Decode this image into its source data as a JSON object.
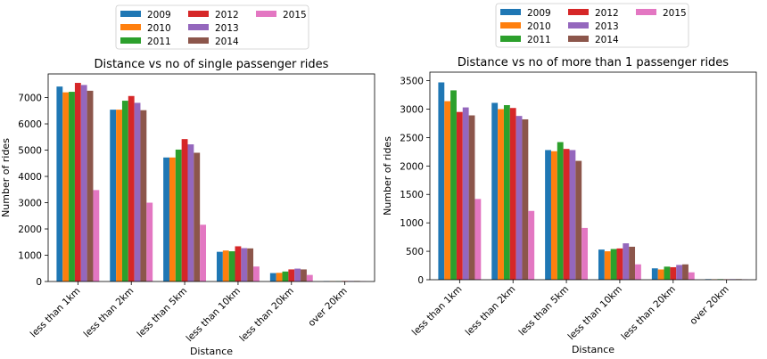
{
  "series_colors": [
    "#1f77b4",
    "#ff7f0e",
    "#2ca02c",
    "#d62728",
    "#9467bd",
    "#8c564b",
    "#e377c2"
  ],
  "chart_data": [
    {
      "type": "bar",
      "title": "Distance vs no of single passenger rides",
      "xlabel": "Distance",
      "ylabel": "Number of rides",
      "ylim": [
        0,
        7900
      ],
      "yticks": [
        0,
        1000,
        2000,
        3000,
        4000,
        5000,
        6000,
        7000
      ],
      "legend_position": "top (above plot)",
      "categories": [
        "less than 1km",
        "less than 2km",
        "less than 5km",
        "less than 10km",
        "less than 20km",
        "over 20km"
      ],
      "series": [
        {
          "name": "2009",
          "values": [
            7420,
            6540,
            4720,
            1130,
            320,
            15
          ]
        },
        {
          "name": "2010",
          "values": [
            7200,
            6540,
            4720,
            1180,
            330,
            15
          ]
        },
        {
          "name": "2011",
          "values": [
            7220,
            6880,
            5020,
            1150,
            380,
            15
          ]
        },
        {
          "name": "2012",
          "values": [
            7560,
            7060,
            5420,
            1340,
            460,
            20
          ]
        },
        {
          "name": "2013",
          "values": [
            7480,
            6800,
            5220,
            1270,
            490,
            20
          ]
        },
        {
          "name": "2014",
          "values": [
            7260,
            6520,
            4900,
            1260,
            460,
            20
          ]
        },
        {
          "name": "2015",
          "values": [
            3480,
            3000,
            2160,
            570,
            250,
            10
          ]
        }
      ]
    },
    {
      "type": "bar",
      "title": "Distance vs no of more than 1 passenger rides",
      "xlabel": "Distance",
      "ylabel": "Number of rides",
      "ylim": [
        0,
        3650
      ],
      "yticks": [
        0,
        500,
        1000,
        1500,
        2000,
        2500,
        3000,
        3500
      ],
      "legend_position": "top (above plot)",
      "categories": [
        "less than 1km",
        "less than 2km",
        "less than 5km",
        "less than 10km",
        "less than 20km",
        "over 20km"
      ],
      "series": [
        {
          "name": "2009",
          "values": [
            3470,
            3110,
            2280,
            530,
            200,
            10
          ]
        },
        {
          "name": "2010",
          "values": [
            3140,
            3000,
            2260,
            500,
            180,
            8
          ]
        },
        {
          "name": "2011",
          "values": [
            3330,
            3070,
            2420,
            540,
            230,
            10
          ]
        },
        {
          "name": "2012",
          "values": [
            2950,
            3020,
            2300,
            550,
            220,
            8
          ]
        },
        {
          "name": "2013",
          "values": [
            3030,
            2880,
            2280,
            640,
            260,
            10
          ]
        },
        {
          "name": "2014",
          "values": [
            2890,
            2820,
            2090,
            580,
            270,
            10
          ]
        },
        {
          "name": "2015",
          "values": [
            1420,
            1210,
            910,
            270,
            130,
            5
          ]
        }
      ]
    }
  ]
}
